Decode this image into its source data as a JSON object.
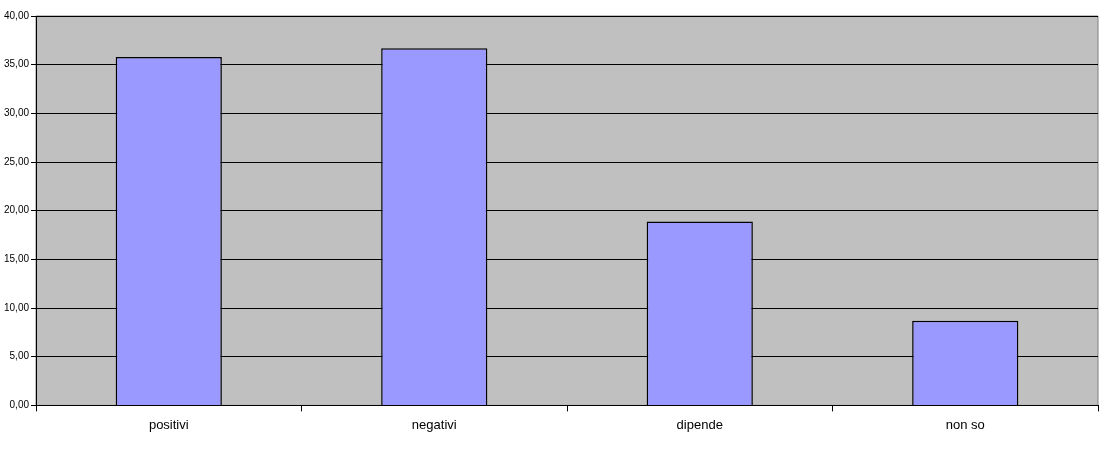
{
  "chart_data": {
    "type": "bar",
    "categories": [
      "positivi",
      "negativi",
      "dipende",
      "non so"
    ],
    "values": [
      35.8,
      36.7,
      18.9,
      8.7
    ],
    "color": "#9999ff",
    "ylim": [
      0,
      40
    ],
    "yticks": [
      {
        "value": 0,
        "label": "0,00"
      },
      {
        "value": 5,
        "label": "5,00"
      },
      {
        "value": 10,
        "label": "10,00"
      },
      {
        "value": 15,
        "label": "15,00"
      },
      {
        "value": 20,
        "label": "20,00"
      },
      {
        "value": 25,
        "label": "25,00"
      },
      {
        "value": 30,
        "label": "30,00"
      },
      {
        "value": 35,
        "label": "35,00"
      },
      {
        "value": 40,
        "label": "40,00"
      }
    ],
    "grid": "y",
    "legend": false
  }
}
